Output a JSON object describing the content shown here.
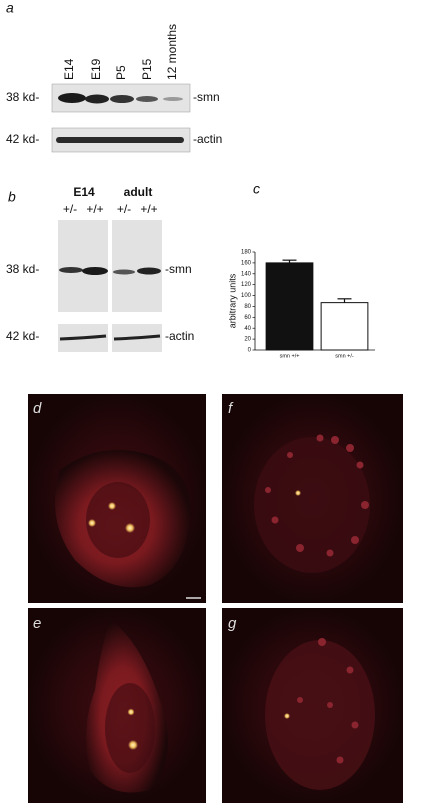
{
  "panel_a": {
    "label": "a",
    "lanes": [
      "E14",
      "E19",
      "P5",
      "P15",
      "12 months"
    ],
    "blots": [
      {
        "size": "38 kd-",
        "protein": "-smn"
      },
      {
        "size": "42 kd-",
        "protein": "-actin"
      }
    ]
  },
  "panel_b": {
    "label": "b",
    "groups": [
      "E14",
      "adult"
    ],
    "genotypes": [
      "+/-",
      "+/+",
      "+/-",
      "+/+"
    ],
    "blots": [
      {
        "size": "38 kd-",
        "protein": "-smn"
      },
      {
        "size": "42 kd-",
        "protein": "-actin"
      }
    ]
  },
  "chart_data": {
    "type": "bar",
    "label": "c",
    "ylabel": "arbitrary units",
    "categories": [
      "smn +/+",
      "smn +/-"
    ],
    "values": [
      160,
      87
    ],
    "errors": [
      5,
      7
    ],
    "colors": [
      "#111111",
      "#ffffff"
    ],
    "ylim": [
      0,
      180
    ],
    "yticks": [
      0,
      20,
      40,
      60,
      80,
      100,
      120,
      140,
      160,
      180
    ]
  },
  "images": [
    {
      "label": "d"
    },
    {
      "label": "f"
    },
    {
      "label": "e"
    },
    {
      "label": "g"
    }
  ]
}
